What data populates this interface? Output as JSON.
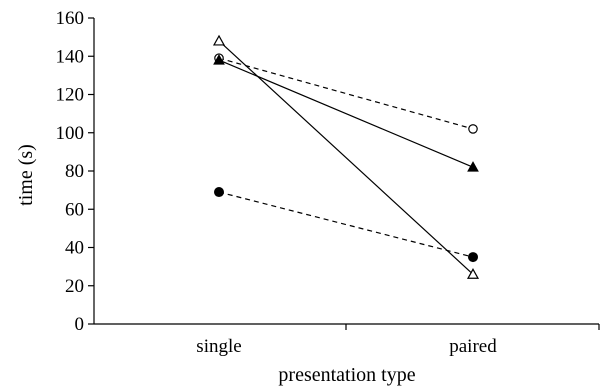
{
  "chart_data": {
    "type": "line",
    "title": "",
    "xlabel": "presentation type",
    "ylabel": "time (s)",
    "categories": [
      "single",
      "paired"
    ],
    "ylim": [
      0,
      160
    ],
    "yticks": [
      0,
      20,
      40,
      60,
      80,
      100,
      120,
      140,
      160
    ],
    "grid": false,
    "legend": "none",
    "series": [
      {
        "values": [
          139,
          102
        ],
        "marker": "open-circle",
        "line_style": "dashed"
      },
      {
        "values": [
          69,
          35
        ],
        "marker": "filled-circle",
        "line_style": "dashed"
      },
      {
        "values": [
          148,
          26
        ],
        "marker": "open-triangle",
        "line_style": "solid"
      },
      {
        "values": [
          138,
          82
        ],
        "marker": "filled-triangle",
        "line_style": "solid"
      }
    ],
    "colors": {
      "axis": "#000000",
      "series_line": "#000000"
    }
  }
}
